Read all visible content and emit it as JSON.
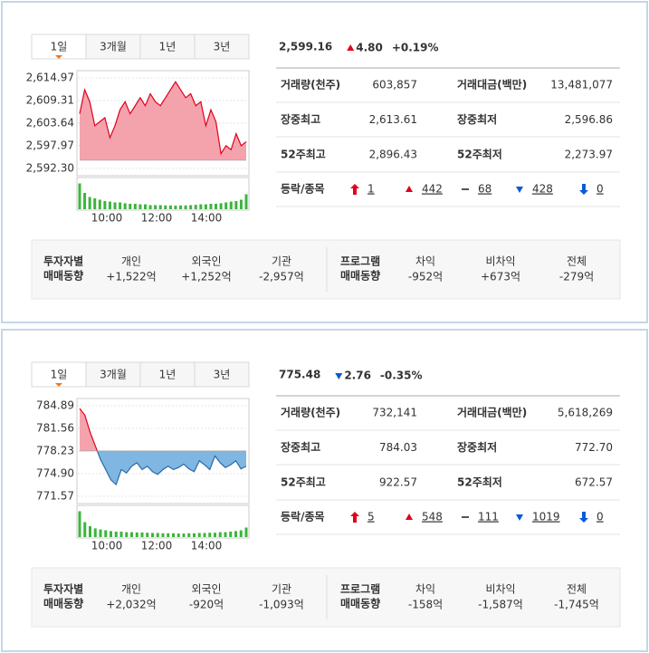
{
  "panels": [
    {
      "tabs": [
        "1일",
        "3개월",
        "1년",
        "3년"
      ],
      "chart": {
        "type": "area",
        "yticks": [
          {
            "value": 2614.97,
            "label": "2,614.97"
          },
          {
            "value": 2609.31,
            "label": "2,609.31"
          },
          {
            "value": 2603.64,
            "label": "2,603.64"
          },
          {
            "value": 2597.97,
            "label": "2,597.97"
          },
          {
            "value": 2592.3,
            "label": "2,592.30"
          }
        ],
        "ylim": [
          2592.3,
          2614.97
        ],
        "base": 2594.36,
        "values": [
          2606,
          2612,
          2609,
          2603,
          2604,
          2605,
          2600,
          2603,
          2607,
          2609,
          2606,
          2608,
          2610,
          2608,
          2611,
          2609,
          2608,
          2610,
          2612,
          2614,
          2612,
          2610,
          2611,
          2608,
          2609,
          2603,
          2607,
          2604,
          2596,
          2598,
          2597,
          2601,
          2598,
          2599
        ],
        "volume": [
          95,
          60,
          45,
          40,
          35,
          30,
          28,
          25,
          25,
          22,
          20,
          20,
          18,
          18,
          15,
          15,
          15,
          14,
          14,
          13,
          14,
          14,
          15,
          16,
          18,
          18,
          20,
          20,
          22,
          25,
          28,
          30,
          35,
          55
        ],
        "xlabels": [
          "10:00",
          "12:00",
          "14:00"
        ]
      },
      "price": "2,599.16",
      "change": "4.80",
      "change_pct": "+0.19%",
      "direction": "up",
      "stats": [
        [
          "거래량(천주)",
          "603,857",
          "거래대금(백만)",
          "13,481,077"
        ],
        [
          "장중최고",
          "2,613.61",
          "장중최저",
          "2,596.86"
        ],
        [
          "52주최고",
          "2,896.43",
          "52주최저",
          "2,273.97"
        ]
      ],
      "breadth": {
        "label": "등락/종목",
        "upper_limit": "1",
        "up": "442",
        "flat": "68",
        "down": "428",
        "lower_limit": "0"
      },
      "investors": {
        "label": [
          "투자자별",
          "매매동향"
        ],
        "items": [
          {
            "name": "개인",
            "value": "+1,522억"
          },
          {
            "name": "외국인",
            "value": "+1,252억"
          },
          {
            "name": "기관",
            "value": "-2,957억"
          }
        ]
      },
      "program": {
        "label": [
          "프로그램",
          "매매동향"
        ],
        "items": [
          {
            "name": "차익",
            "value": "-952억"
          },
          {
            "name": "비차익",
            "value": "+673억"
          },
          {
            "name": "전체",
            "value": "-279억"
          }
        ]
      }
    },
    {
      "tabs": [
        "1일",
        "3개월",
        "1년",
        "3년"
      ],
      "chart": {
        "type": "area",
        "yticks": [
          {
            "value": 784.89,
            "label": "784.89"
          },
          {
            "value": 781.56,
            "label": "781.56"
          },
          {
            "value": 778.23,
            "label": "778.23"
          },
          {
            "value": 774.9,
            "label": "774.90"
          },
          {
            "value": 771.57,
            "label": "771.57"
          }
        ],
        "ylim": [
          771.57,
          784.89
        ],
        "base": 778.24,
        "values": [
          784.5,
          783.5,
          781,
          779,
          777,
          775.5,
          774,
          773.3,
          775.5,
          775,
          776,
          776.5,
          775.5,
          776,
          775.2,
          774.8,
          775.5,
          776,
          775.5,
          775.8,
          776.3,
          775.6,
          775.2,
          776.8,
          776.2,
          775.5,
          777.5,
          776.5,
          775.8,
          776.2,
          776.8,
          775.6,
          776
        ],
        "volume": [
          95,
          55,
          40,
          32,
          28,
          25,
          22,
          20,
          20,
          18,
          18,
          17,
          17,
          16,
          15,
          15,
          14,
          14,
          14,
          13,
          13,
          14,
          14,
          15,
          15,
          16,
          16,
          18,
          18,
          20,
          22,
          25,
          35
        ],
        "xlabels": [
          "10:00",
          "12:00",
          "14:00"
        ]
      },
      "price": "775.48",
      "change": "2.76",
      "change_pct": "-0.35%",
      "direction": "down",
      "stats": [
        [
          "거래량(천주)",
          "732,141",
          "거래대금(백만)",
          "5,618,269"
        ],
        [
          "장중최고",
          "784.03",
          "장중최저",
          "772.70"
        ],
        [
          "52주최고",
          "922.57",
          "52주최저",
          "672.57"
        ]
      ],
      "breadth": {
        "label": "등락/종목",
        "upper_limit": "5",
        "up": "548",
        "flat": "111",
        "down": "1019",
        "lower_limit": "0"
      },
      "investors": {
        "label": [
          "투자자별",
          "매매동향"
        ],
        "items": [
          {
            "name": "개인",
            "value": "+2,032억"
          },
          {
            "name": "외국인",
            "value": "-920억"
          },
          {
            "name": "기관",
            "value": "-1,093억"
          }
        ]
      },
      "program": {
        "label": [
          "프로그램",
          "매매동향"
        ],
        "items": [
          {
            "name": "차익",
            "value": "-158억"
          },
          {
            "name": "비차익",
            "value": "-1,587억"
          },
          {
            "name": "전체",
            "value": "-1,745억"
          }
        ]
      }
    }
  ]
}
